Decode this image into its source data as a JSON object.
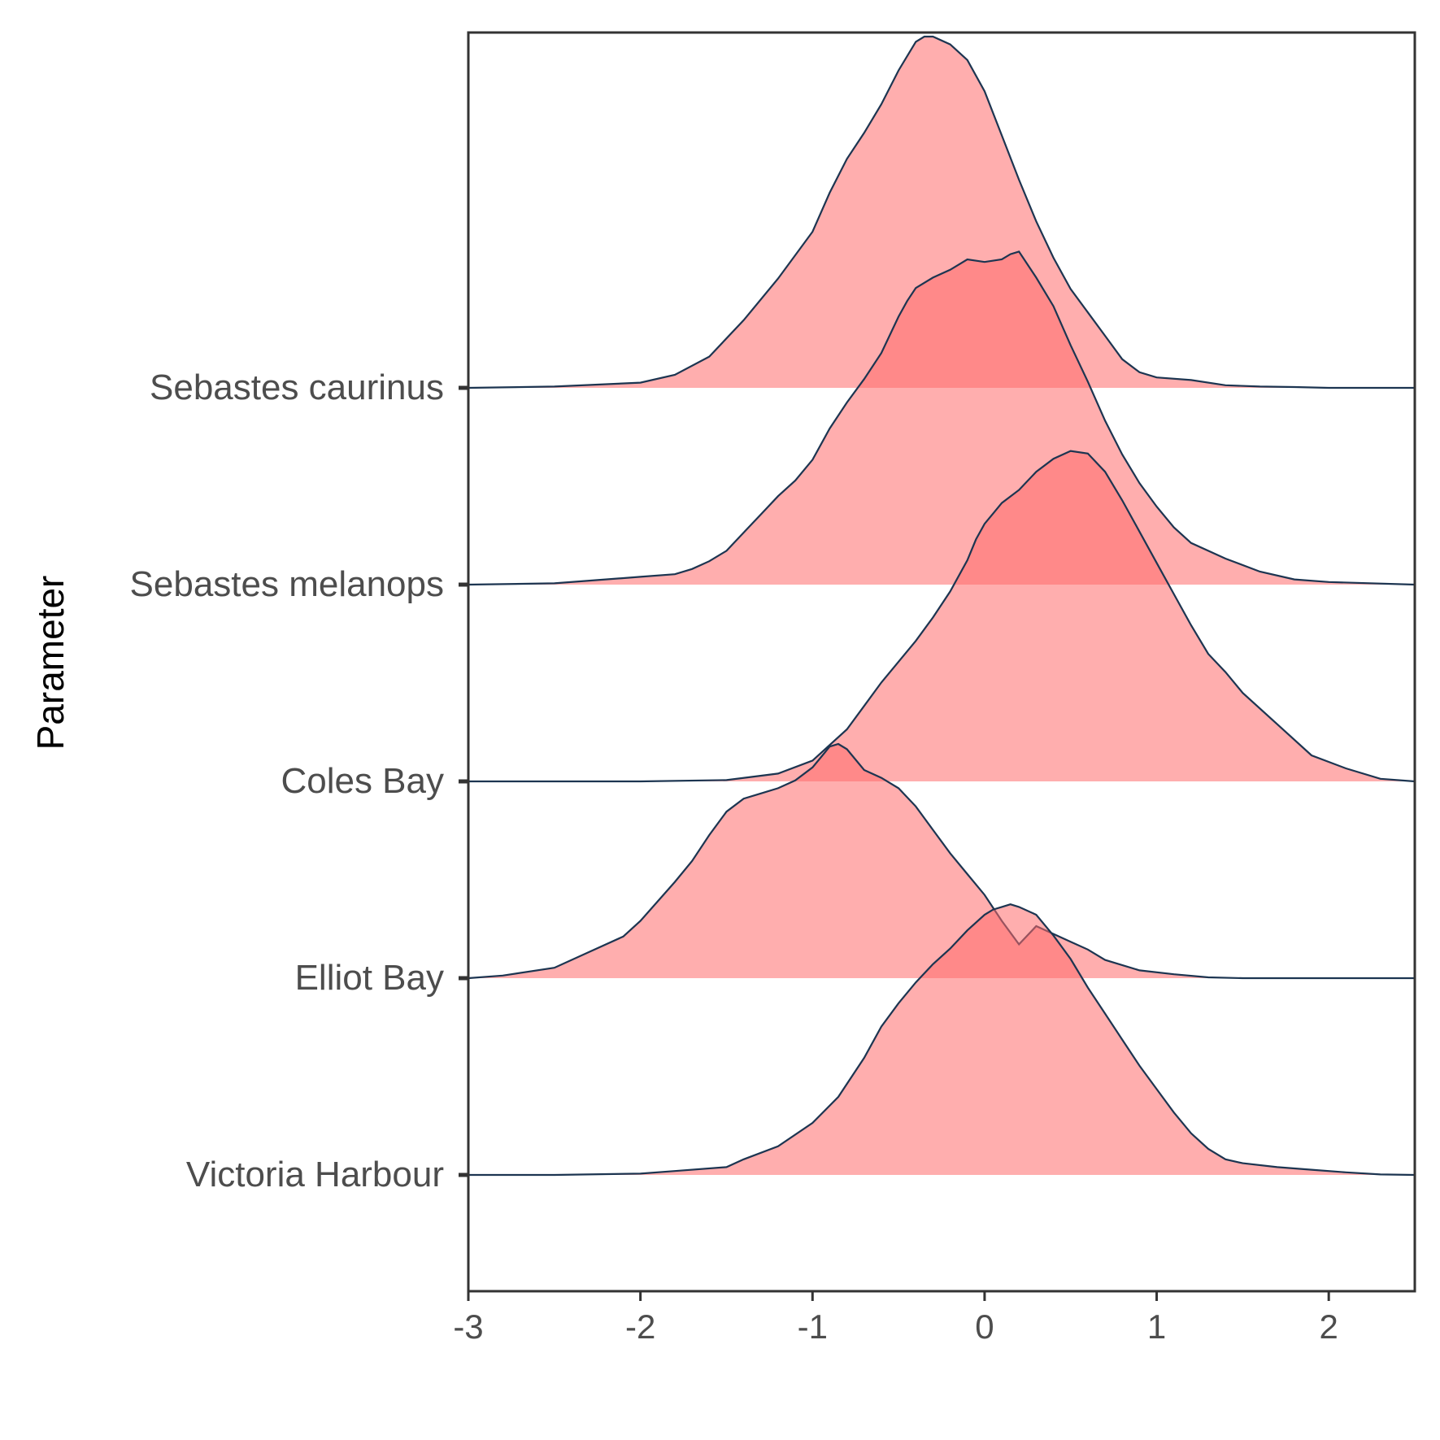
{
  "chart_data": {
    "type": "ridgeline",
    "title": "",
    "xlabel": "",
    "ylabel": "Parameter",
    "xlim": [
      -3,
      2.5
    ],
    "x_ticks": [
      -3,
      -2,
      -1,
      0,
      1,
      2
    ],
    "x_tick_labels": [
      "-3",
      "-2",
      "-1",
      "0",
      "1",
      "2"
    ],
    "grid": false,
    "legend": "none",
    "fill_color": "#ff6b6b",
    "fill_opacity": 0.55,
    "line_color": "#1c3551",
    "ridge_spacing_note": "ridges ordered bottom to top",
    "categories": [
      "Victoria Harbour",
      "Elliot Bay",
      "Coles Bay",
      "Sebastes melanops",
      "Sebastes caurinus"
    ],
    "series": [
      {
        "name": "Victoria Harbour",
        "x": [
          -3.0,
          -2.5,
          -2.0,
          -1.8,
          -1.5,
          -1.4,
          -1.2,
          -1.0,
          -0.85,
          -0.7,
          -0.6,
          -0.5,
          -0.4,
          -0.3,
          -0.2,
          -0.1,
          0.0,
          0.05,
          0.1,
          0.15,
          0.2,
          0.3,
          0.4,
          0.5,
          0.6,
          0.7,
          0.8,
          0.9,
          1.0,
          1.1,
          1.2,
          1.3,
          1.4,
          1.5,
          1.7,
          1.9,
          2.1,
          2.3,
          2.5
        ],
        "y": [
          0.0,
          0.0,
          0.005,
          0.015,
          0.03,
          0.06,
          0.11,
          0.2,
          0.3,
          0.45,
          0.57,
          0.66,
          0.74,
          0.81,
          0.87,
          0.94,
          1.0,
          1.02,
          1.03,
          1.04,
          1.03,
          1.0,
          0.92,
          0.83,
          0.72,
          0.62,
          0.52,
          0.42,
          0.33,
          0.24,
          0.16,
          0.1,
          0.06,
          0.045,
          0.03,
          0.02,
          0.01,
          0.002,
          0.0
        ]
      },
      {
        "name": "Elliot Bay",
        "x": [
          -3.0,
          -2.8,
          -2.5,
          -2.3,
          -2.1,
          -2.0,
          -1.8,
          -1.7,
          -1.6,
          -1.5,
          -1.4,
          -1.3,
          -1.2,
          -1.1,
          -1.0,
          -0.95,
          -0.9,
          -0.85,
          -0.8,
          -0.7,
          -0.6,
          -0.5,
          -0.4,
          -0.3,
          -0.2,
          -0.1,
          0.0,
          0.1,
          0.2,
          0.3,
          0.4,
          0.5,
          0.6,
          0.7,
          0.9,
          1.1,
          1.3,
          1.5,
          2.5
        ],
        "y": [
          0.0,
          0.01,
          0.04,
          0.1,
          0.16,
          0.22,
          0.37,
          0.45,
          0.55,
          0.64,
          0.69,
          0.71,
          0.73,
          0.76,
          0.81,
          0.85,
          0.89,
          0.9,
          0.88,
          0.8,
          0.77,
          0.73,
          0.66,
          0.57,
          0.48,
          0.4,
          0.32,
          0.22,
          0.13,
          0.2,
          0.17,
          0.14,
          0.11,
          0.07,
          0.03,
          0.015,
          0.003,
          0.0,
          0.0
        ]
      },
      {
        "name": "Coles Bay",
        "x": [
          -3.0,
          -2.0,
          -1.5,
          -1.2,
          -1.0,
          -0.8,
          -0.7,
          -0.6,
          -0.5,
          -0.4,
          -0.3,
          -0.2,
          -0.1,
          -0.05,
          0.0,
          0.05,
          0.1,
          0.2,
          0.3,
          0.4,
          0.5,
          0.6,
          0.7,
          0.8,
          0.9,
          1.0,
          1.1,
          1.2,
          1.3,
          1.4,
          1.5,
          1.7,
          1.9,
          2.1,
          2.3,
          2.5
        ],
        "y": [
          0.0,
          0.0,
          0.005,
          0.03,
          0.08,
          0.2,
          0.29,
          0.38,
          0.46,
          0.54,
          0.63,
          0.73,
          0.85,
          0.93,
          0.99,
          1.03,
          1.07,
          1.12,
          1.19,
          1.24,
          1.27,
          1.26,
          1.19,
          1.08,
          0.96,
          0.84,
          0.72,
          0.6,
          0.49,
          0.42,
          0.34,
          0.22,
          0.1,
          0.05,
          0.01,
          0.0
        ]
      },
      {
        "name": "Sebastes melanops",
        "x": [
          -3.0,
          -2.5,
          -2.0,
          -1.8,
          -1.7,
          -1.6,
          -1.5,
          -1.4,
          -1.3,
          -1.2,
          -1.1,
          -1.0,
          -0.9,
          -0.8,
          -0.7,
          -0.6,
          -0.5,
          -0.45,
          -0.4,
          -0.3,
          -0.2,
          -0.1,
          0.0,
          0.1,
          0.15,
          0.2,
          0.3,
          0.4,
          0.5,
          0.6,
          0.7,
          0.8,
          0.9,
          1.0,
          1.1,
          1.2,
          1.4,
          1.6,
          1.8,
          2.0,
          2.5
        ],
        "y": [
          0.0,
          0.005,
          0.03,
          0.04,
          0.06,
          0.09,
          0.13,
          0.2,
          0.27,
          0.34,
          0.4,
          0.48,
          0.6,
          0.7,
          0.79,
          0.89,
          1.03,
          1.09,
          1.14,
          1.18,
          1.21,
          1.25,
          1.24,
          1.25,
          1.27,
          1.28,
          1.18,
          1.07,
          0.92,
          0.78,
          0.63,
          0.5,
          0.39,
          0.3,
          0.22,
          0.16,
          0.1,
          0.05,
          0.02,
          0.01,
          0.0
        ]
      },
      {
        "name": "Sebastes caurinus",
        "x": [
          -3.0,
          -2.5,
          -2.0,
          -1.8,
          -1.6,
          -1.4,
          -1.2,
          -1.0,
          -0.9,
          -0.8,
          -0.7,
          -0.6,
          -0.5,
          -0.4,
          -0.35,
          -0.3,
          -0.2,
          -0.1,
          0.0,
          0.1,
          0.2,
          0.3,
          0.4,
          0.5,
          0.6,
          0.7,
          0.8,
          0.9,
          1.0,
          1.2,
          1.4,
          1.6,
          1.8,
          2.0,
          2.5
        ],
        "y": [
          0.0,
          0.005,
          0.02,
          0.05,
          0.12,
          0.26,
          0.42,
          0.6,
          0.75,
          0.88,
          0.98,
          1.09,
          1.22,
          1.33,
          1.35,
          1.35,
          1.32,
          1.26,
          1.14,
          0.97,
          0.8,
          0.64,
          0.5,
          0.38,
          0.29,
          0.2,
          0.11,
          0.06,
          0.04,
          0.03,
          0.01,
          0.005,
          0.003,
          0.0,
          0.0
        ]
      }
    ]
  }
}
